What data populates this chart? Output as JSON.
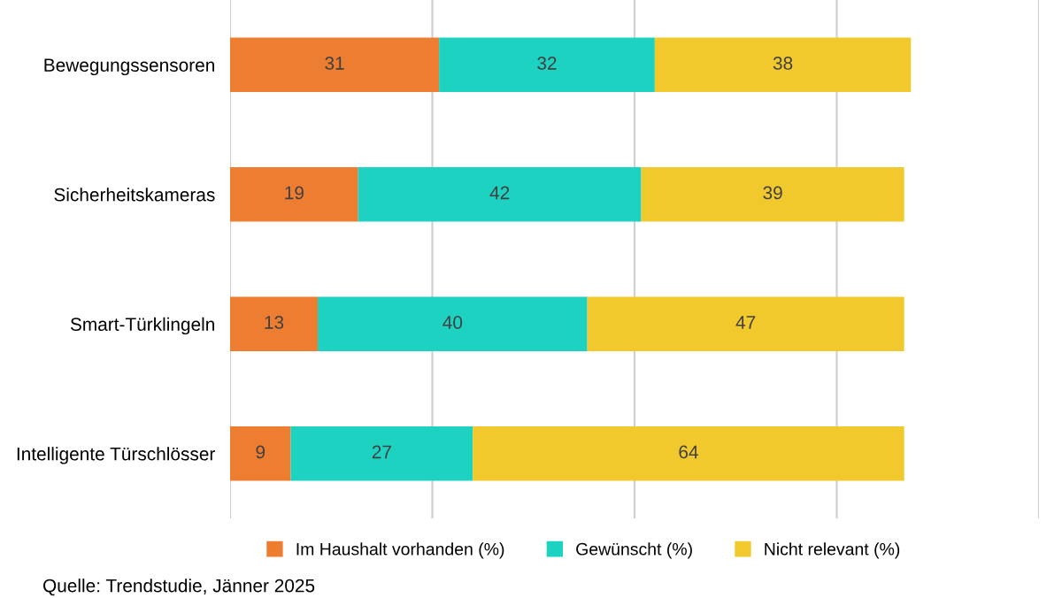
{
  "chart_data": {
    "type": "bar",
    "orientation": "horizontal",
    "stacked": true,
    "data_labels": true,
    "categories": [
      "Bewegungssensoren",
      "Sicherheitskameras",
      "Smart-Türklingeln",
      "Intelligente Türschlösser"
    ],
    "series": [
      {
        "name": "Im Haushalt vorhanden (%)",
        "color": "#ed7d31",
        "values": [
          31,
          19,
          13,
          9
        ]
      },
      {
        "name": "Gewünscht (%)",
        "color": "#1ed2c2",
        "values": [
          32,
          42,
          40,
          27
        ]
      },
      {
        "name": "Nicht relevant (%)",
        "color": "#f2c92c",
        "values": [
          38,
          39,
          47,
          64
        ]
      }
    ],
    "xlim": [
      0,
      120
    ],
    "xticks": [
      {
        "value": 0,
        "label": null
      },
      {
        "value": 30,
        "label": null
      },
      {
        "value": 60,
        "label": null
      },
      {
        "value": 90,
        "label": null
      },
      {
        "value": 120,
        "label": null
      }
    ],
    "tick_labels": "y",
    "grid": "x",
    "legend": "bottom",
    "annotations": [
      "Quelle: Trendstudie, Jänner 2025"
    ]
  }
}
